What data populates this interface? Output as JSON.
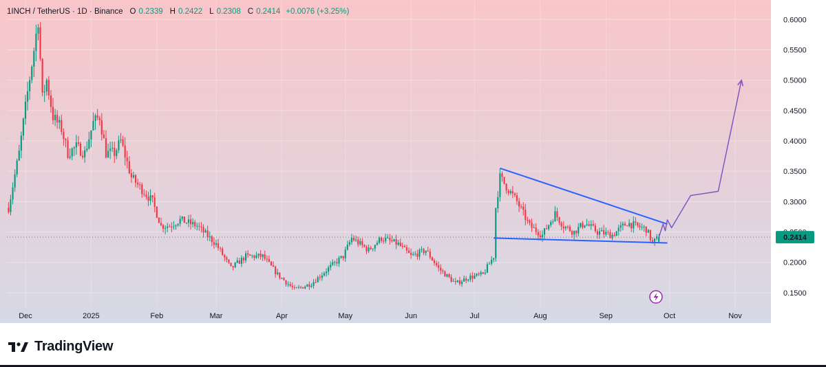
{
  "header": {
    "symbol": "1INCH / TetherUS · 1D · Binance",
    "o_key": "O",
    "o_val": "0.2339",
    "h_key": "H",
    "h_val": "0.2422",
    "l_key": "L",
    "l_val": "0.2308",
    "c_key": "C",
    "c_val": "0.2414",
    "change": "+0.0076 (+3.25%)"
  },
  "brand": {
    "name": "TradingView"
  },
  "colors": {
    "up": "#089981",
    "down": "#f23645",
    "bg_top": "#f9c6c9",
    "bg_bottom": "#d6d9e6",
    "trendline": "#2962ff",
    "projection": "#7e57c2",
    "price_tag": "#089981"
  },
  "chart_data": {
    "type": "candlestick",
    "title": "",
    "xlabel": "",
    "ylabel": "",
    "ylim": [
      0.125,
      0.632
    ],
    "x_ticks": [
      {
        "label": "Dec",
        "date": "2024-12-01"
      },
      {
        "label": "2025",
        "date": "2025-01-01"
      },
      {
        "label": "Feb",
        "date": "2025-02-01"
      },
      {
        "label": "Mar",
        "date": "2025-03-01"
      },
      {
        "label": "Apr",
        "date": "2025-04-01"
      },
      {
        "label": "May",
        "date": "2025-05-01"
      },
      {
        "label": "Jun",
        "date": "2025-06-01"
      },
      {
        "label": "Jul",
        "date": "2025-07-01"
      },
      {
        "label": "Aug",
        "date": "2025-08-01"
      },
      {
        "label": "Sep",
        "date": "2025-09-01"
      },
      {
        "label": "Oct",
        "date": "2025-10-01"
      },
      {
        "label": "Nov",
        "date": "2025-11-01"
      }
    ],
    "y_ticks": [
      "0.1500",
      "0.2000",
      "0.2500",
      "0.3000",
      "0.3500",
      "0.4000",
      "0.4500",
      "0.5000",
      "0.5500",
      "0.6000"
    ],
    "last_price": "0.2414",
    "start_date": "2024-11-23",
    "end_date": "2025-09-26",
    "anchors": [
      [
        "2024-11-23",
        0.29
      ],
      [
        "2024-11-28",
        0.38
      ],
      [
        "2024-12-02",
        0.48
      ],
      [
        "2024-12-05",
        0.55
      ],
      [
        "2024-12-07",
        0.6
      ],
      [
        "2024-12-09",
        0.47
      ],
      [
        "2024-12-11",
        0.5
      ],
      [
        "2024-12-14",
        0.44
      ],
      [
        "2024-12-18",
        0.42
      ],
      [
        "2024-12-21",
        0.38
      ],
      [
        "2024-12-25",
        0.39
      ],
      [
        "2024-12-29",
        0.38
      ],
      [
        "2025-01-02",
        0.43
      ],
      [
        "2025-01-05",
        0.44
      ],
      [
        "2025-01-08",
        0.38
      ],
      [
        "2025-01-12",
        0.38
      ],
      [
        "2025-01-15",
        0.4
      ],
      [
        "2025-01-20",
        0.34
      ],
      [
        "2025-01-25",
        0.32
      ],
      [
        "2025-01-30",
        0.3
      ],
      [
        "2025-02-03",
        0.26
      ],
      [
        "2025-02-07",
        0.26
      ],
      [
        "2025-02-12",
        0.27
      ],
      [
        "2025-02-20",
        0.26
      ],
      [
        "2025-03-01",
        0.23
      ],
      [
        "2025-03-08",
        0.19
      ],
      [
        "2025-03-15",
        0.21
      ],
      [
        "2025-03-23",
        0.21
      ],
      [
        "2025-03-30",
        0.18
      ],
      [
        "2025-04-07",
        0.155
      ],
      [
        "2025-04-15",
        0.165
      ],
      [
        "2025-04-23",
        0.19
      ],
      [
        "2025-04-30",
        0.21
      ],
      [
        "2025-05-04",
        0.24
      ],
      [
        "2025-05-12",
        0.22
      ],
      [
        "2025-05-18",
        0.24
      ],
      [
        "2025-05-26",
        0.23
      ],
      [
        "2025-06-01",
        0.21
      ],
      [
        "2025-06-08",
        0.22
      ],
      [
        "2025-06-14",
        0.19
      ],
      [
        "2025-06-22",
        0.165
      ],
      [
        "2025-06-28",
        0.175
      ],
      [
        "2025-07-05",
        0.18
      ],
      [
        "2025-07-10",
        0.21
      ],
      [
        "2025-07-11",
        0.29
      ],
      [
        "2025-07-13",
        0.34
      ],
      [
        "2025-07-17",
        0.32
      ],
      [
        "2025-07-21",
        0.3
      ],
      [
        "2025-07-27",
        0.26
      ],
      [
        "2025-08-02",
        0.245
      ],
      [
        "2025-08-08",
        0.28
      ],
      [
        "2025-08-12",
        0.26
      ],
      [
        "2025-08-17",
        0.25
      ],
      [
        "2025-08-22",
        0.265
      ],
      [
        "2025-08-28",
        0.25
      ],
      [
        "2025-09-04",
        0.245
      ],
      [
        "2025-09-11",
        0.265
      ],
      [
        "2025-09-15",
        0.26
      ],
      [
        "2025-09-20",
        0.255
      ],
      [
        "2025-09-23",
        0.232
      ],
      [
        "2025-09-26",
        0.2414
      ]
    ],
    "drawings": {
      "upper_trendline": [
        [
          "2025-07-13",
          0.355
        ],
        [
          "2025-09-30",
          0.263
        ]
      ],
      "lower_trendline": [
        [
          "2025-07-10",
          0.24
        ],
        [
          "2025-09-30",
          0.232
        ]
      ],
      "projection_path": [
        [
          "2025-09-26",
          0.2414
        ],
        [
          "2025-09-28",
          0.263
        ],
        [
          "2025-09-29",
          0.252
        ],
        [
          "2025-09-30",
          0.27
        ],
        [
          "2025-10-02",
          0.257
        ],
        [
          "2025-10-11",
          0.31
        ],
        [
          "2025-10-24",
          0.317
        ],
        [
          "2025-11-04",
          0.5
        ]
      ]
    }
  }
}
